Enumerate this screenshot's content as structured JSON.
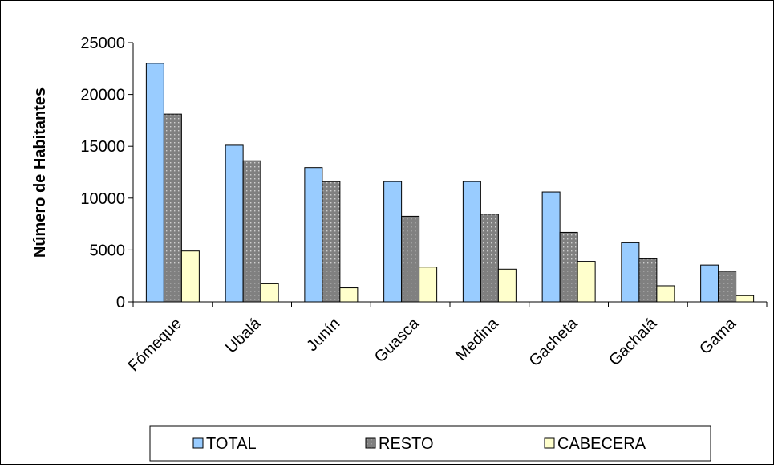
{
  "chart_data": {
    "type": "bar",
    "title": "",
    "xlabel": "",
    "ylabel": "Número de Habitantes",
    "ylim": [
      0,
      25000
    ],
    "yticks": [
      0,
      5000,
      10000,
      15000,
      20000,
      25000
    ],
    "grid": false,
    "legend_position": "bottom",
    "categories": [
      "Fómeque",
      "Ubalá",
      "Junín",
      "Guasca",
      "Medina",
      "Gacheta",
      "Gachalá",
      "Gama"
    ],
    "series": [
      {
        "name": "TOTAL",
        "color": "#99ccff",
        "pattern": "solid",
        "values": [
          23000,
          15100,
          12950,
          11600,
          11600,
          10600,
          5700,
          3550
        ]
      },
      {
        "name": "RESTO",
        "color": "#808080",
        "pattern": "dotted",
        "values": [
          18100,
          13600,
          11600,
          8250,
          8450,
          6700,
          4150,
          2950
        ]
      },
      {
        "name": "CABECERA",
        "color": "#ffffcc",
        "pattern": "solid",
        "values": [
          4900,
          1750,
          1350,
          3350,
          3150,
          3900,
          1550,
          600
        ]
      }
    ]
  }
}
